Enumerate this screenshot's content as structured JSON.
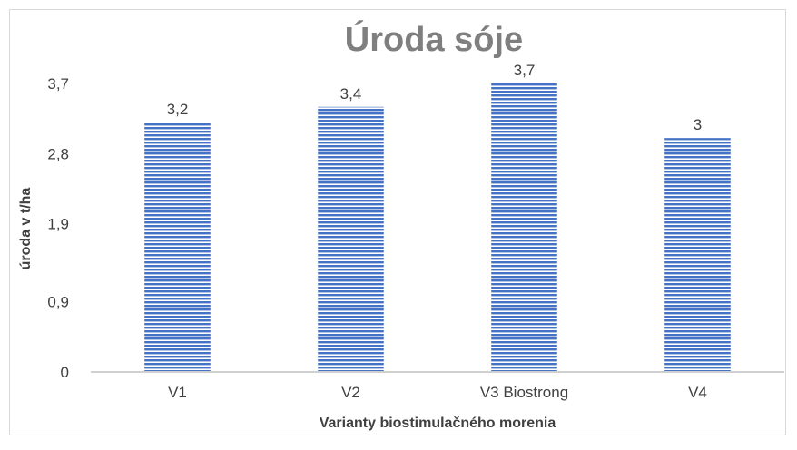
{
  "chart_data": {
    "type": "bar",
    "title": "Úroda sóje",
    "xlabel": "Varianty biostimulačného morenia",
    "ylabel": "úroda v t/ha",
    "categories": [
      "V1",
      "V2",
      "V3 Biostrong",
      "V4"
    ],
    "values": [
      3.2,
      3.4,
      3.7,
      3
    ],
    "data_labels": [
      "3,2",
      "3,4",
      "3,7",
      "3"
    ],
    "ylim": [
      0,
      3.7
    ],
    "yticks": [
      0,
      0.9,
      1.9,
      2.8,
      3.7
    ],
    "ytick_labels": [
      "0",
      "0,9",
      "1,9",
      "2,8",
      "3,7"
    ],
    "grid": false,
    "legend": "none",
    "bar_color": "#4472c4",
    "bar_pattern": "horizontal-stripes"
  }
}
